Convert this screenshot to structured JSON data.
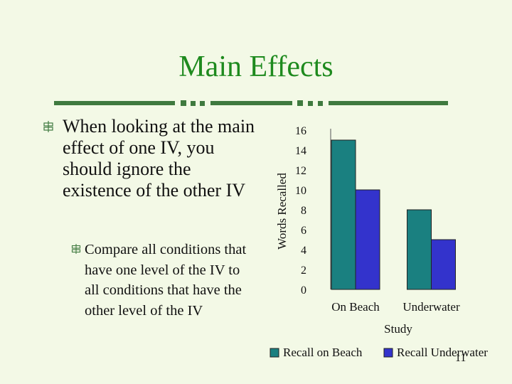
{
  "slide": {
    "title": "Main Effects",
    "page_number": "11",
    "bullets": [
      {
        "text": "When looking at the main effect of one IV, you should ignore the existence of the other IV",
        "sub": [
          "Compare all conditions that have one level of the IV to all conditions that have the other level of the IV"
        ]
      }
    ]
  },
  "colors": {
    "title": "#1e8a1e",
    "background": "#f3f9e6",
    "divider": "#3f7a3f",
    "series_1": "#1a8080",
    "series_2": "#3333cc"
  },
  "chart_data": {
    "type": "bar",
    "title": "",
    "xlabel": "Study",
    "ylabel": "Words Recalled",
    "ylim": [
      0,
      16
    ],
    "yticks": [
      0,
      2,
      4,
      6,
      8,
      10,
      12,
      14,
      16
    ],
    "categories": [
      "On Beach",
      "Underwater"
    ],
    "series": [
      {
        "name": "Recall on Beach",
        "values": [
          15,
          8
        ]
      },
      {
        "name": "Recall Underwater",
        "values": [
          10,
          5
        ]
      }
    ],
    "grid": false,
    "legend_position": "bottom"
  }
}
